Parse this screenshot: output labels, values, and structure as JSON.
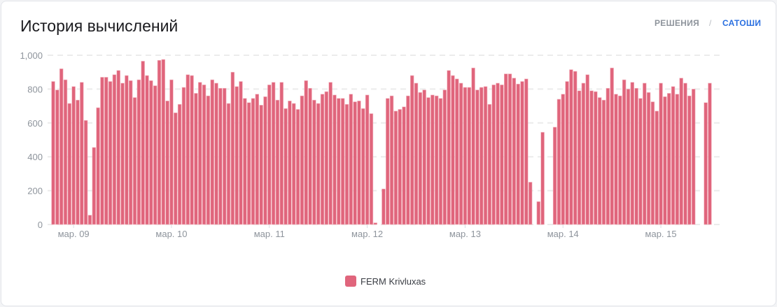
{
  "header": {
    "title": "История вычислений",
    "toggle_solutions": "РЕШЕНИЯ",
    "separator": "/",
    "toggle_satoshi": "САТОШИ"
  },
  "colors": {
    "bar": "#e0657c",
    "active_toggle": "#2a6fe0"
  },
  "chart_data": {
    "type": "bar",
    "title": "История вычислений",
    "xlabel": "",
    "ylabel": "",
    "ylim": [
      0,
      1000
    ],
    "y_ticks": [
      "0",
      "200",
      "400",
      "600",
      "800",
      "1,000"
    ],
    "y_tick_values": [
      0,
      200,
      400,
      600,
      800,
      1000
    ],
    "grid": true,
    "x_ticks": [
      {
        "label": "мар. 09",
        "index": 5
      },
      {
        "label": "мар. 10",
        "index": 29
      },
      {
        "label": "мар. 11",
        "index": 53
      },
      {
        "label": "мар. 12",
        "index": 77
      },
      {
        "label": "мар. 13",
        "index": 101
      },
      {
        "label": "мар. 14",
        "index": 125
      },
      {
        "label": "мар. 15",
        "index": 149
      }
    ],
    "legend": {
      "position": "bottom",
      "entries": [
        "FERM Krivluxas"
      ]
    },
    "series": [
      {
        "name": "FERM Krivluxas",
        "values": [
          845,
          795,
          920,
          855,
          715,
          815,
          735,
          840,
          615,
          55,
          455,
          690,
          870,
          870,
          845,
          885,
          910,
          835,
          880,
          850,
          750,
          855,
          965,
          880,
          850,
          820,
          970,
          975,
          730,
          855,
          660,
          710,
          810,
          885,
          880,
          775,
          840,
          825,
          760,
          855,
          835,
          805,
          805,
          715,
          900,
          815,
          845,
          745,
          720,
          745,
          770,
          705,
          755,
          825,
          840,
          735,
          840,
          685,
          730,
          715,
          680,
          760,
          850,
          805,
          735,
          715,
          770,
          785,
          840,
          765,
          745,
          745,
          710,
          770,
          725,
          730,
          685,
          765,
          655,
          10,
          null,
          210,
          745,
          760,
          670,
          680,
          695,
          760,
          880,
          835,
          780,
          795,
          750,
          765,
          760,
          745,
          795,
          910,
          880,
          860,
          835,
          810,
          810,
          925,
          795,
          810,
          815,
          710,
          825,
          835,
          825,
          890,
          890,
          865,
          830,
          845,
          860,
          250,
          null,
          135,
          545,
          null,
          null,
          575,
          740,
          770,
          845,
          915,
          905,
          790,
          835,
          885,
          790,
          785,
          750,
          735,
          805,
          925,
          770,
          760,
          855,
          800,
          840,
          805,
          745,
          835,
          780,
          725,
          670,
          835,
          755,
          775,
          815,
          770,
          865,
          835,
          760,
          800,
          null,
          null,
          720,
          835
        ]
      }
    ]
  }
}
